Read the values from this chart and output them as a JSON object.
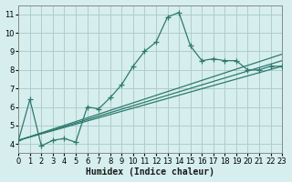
{
  "xlabel": "Humidex (Indice chaleur)",
  "bg_color": "#d6eeee",
  "grid_color": "#b0cccc",
  "line_color": "#2d7a6e",
  "xlim": [
    0,
    23
  ],
  "ylim": [
    3.5,
    11.5
  ],
  "xticks": [
    0,
    1,
    2,
    3,
    4,
    5,
    6,
    7,
    8,
    9,
    10,
    11,
    12,
    13,
    14,
    15,
    16,
    17,
    18,
    19,
    20,
    21,
    22,
    23
  ],
  "yticks": [
    4,
    5,
    6,
    7,
    8,
    9,
    10,
    11
  ],
  "main_x": [
    0,
    1,
    2,
    3,
    4,
    5,
    6,
    7,
    8,
    9,
    10,
    11,
    12,
    13,
    14,
    15,
    16,
    17,
    18,
    19,
    20,
    21,
    22,
    23
  ],
  "main_y": [
    4.2,
    6.4,
    3.9,
    4.2,
    4.3,
    4.1,
    6.0,
    5.9,
    6.5,
    7.2,
    8.2,
    9.0,
    9.5,
    10.85,
    11.1,
    9.3,
    8.5,
    8.6,
    8.5,
    8.5,
    8.0,
    8.0,
    8.2,
    8.2
  ],
  "line1_x": [
    0,
    23
  ],
  "line1_y": [
    4.2,
    8.2
  ],
  "line2_x": [
    0,
    23
  ],
  "line2_y": [
    4.2,
    8.5
  ],
  "line3_x": [
    0,
    23
  ],
  "line3_y": [
    4.2,
    8.85
  ]
}
